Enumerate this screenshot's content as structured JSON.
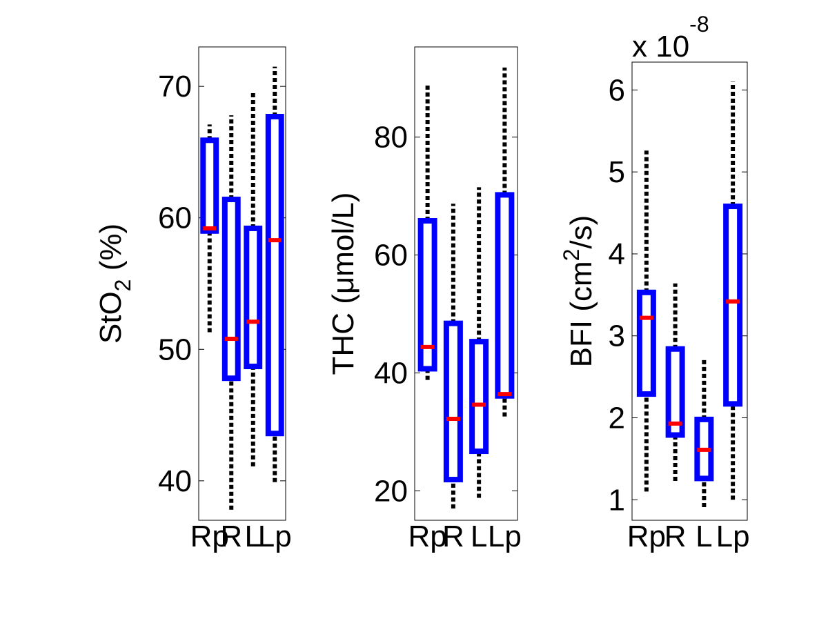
{
  "chart_data": [
    {
      "type": "box",
      "ylabel": {
        "text": "StO",
        "sub": "2",
        "after": " (%)"
      },
      "categories": [
        "Rp",
        "R",
        "L",
        "Lp"
      ],
      "boxes": [
        {
          "whislo": 51.3,
          "q1": 59.0,
          "med": 59.2,
          "q3": 65.9,
          "whishi": 67.1
        },
        {
          "whislo": 37.8,
          "q1": 47.8,
          "med": 50.8,
          "q3": 61.4,
          "whishi": 67.8
        },
        {
          "whislo": 41.1,
          "q1": 48.7,
          "med": 52.1,
          "q3": 59.2,
          "whishi": 69.6
        },
        {
          "whislo": 39.9,
          "q1": 43.6,
          "med": 58.3,
          "q3": 67.7,
          "whishi": 71.5
        }
      ],
      "box_color": "#0000ff",
      "median_color": "#ff0000",
      "whisker_color": "#000000",
      "ylim": [
        37,
        73
      ],
      "yticks": [
        40,
        50,
        60,
        70
      ]
    },
    {
      "type": "box",
      "ylabel": {
        "text": "THC (μmol/L)"
      },
      "categories": [
        "Rp",
        "R",
        "L",
        "Lp"
      ],
      "boxes": [
        {
          "whislo": 38.8,
          "q1": 40.7,
          "med": 44.4,
          "q3": 65.8,
          "whishi": 89.0
        },
        {
          "whislo": 17.0,
          "q1": 21.9,
          "med": 32.2,
          "q3": 48.4,
          "whishi": 68.7
        },
        {
          "whislo": 18.8,
          "q1": 26.7,
          "med": 34.6,
          "q3": 45.3,
          "whishi": 71.5
        },
        {
          "whislo": 32.6,
          "q1": 36.1,
          "med": 36.4,
          "q3": 70.2,
          "whishi": 91.8
        }
      ],
      "box_color": "#0000ff",
      "median_color": "#ff0000",
      "whisker_color": "#000000",
      "ylim": [
        15,
        95.3
      ],
      "yticks": [
        20,
        40,
        60,
        80
      ]
    },
    {
      "type": "box",
      "ylabel": {
        "text": "BFI (cm",
        "sup": "2",
        "after": "/s)"
      },
      "multiplier": {
        "text": "x 10",
        "sup": "-8"
      },
      "categories": [
        "Rp",
        "R",
        "L",
        "Lp"
      ],
      "boxes": [
        {
          "whislo": 1.1,
          "q1": 2.29,
          "med": 3.22,
          "q3": 3.53,
          "whishi": 5.26
        },
        {
          "whislo": 1.23,
          "q1": 1.79,
          "med": 1.93,
          "q3": 2.84,
          "whishi": 3.64
        },
        {
          "whislo": 0.91,
          "q1": 1.26,
          "med": 1.61,
          "q3": 1.98,
          "whishi": 2.71
        },
        {
          "whislo": 1.0,
          "q1": 2.17,
          "med": 3.42,
          "q3": 4.58,
          "whishi": 6.1
        }
      ],
      "box_color": "#0000ff",
      "median_color": "#ff0000",
      "whisker_color": "#000000",
      "ylim": [
        0.75,
        6.34
      ],
      "yticks": [
        1,
        2,
        3,
        4,
        5,
        6
      ]
    }
  ]
}
